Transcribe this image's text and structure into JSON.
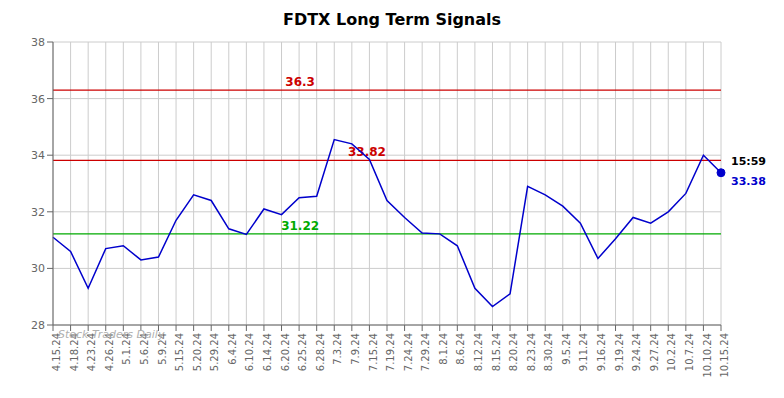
{
  "chart_data": {
    "type": "line",
    "title": "FDTX Long Term Signals",
    "categories": [
      "4.15.24",
      "4.18.24",
      "4.23.24",
      "4.26.24",
      "5.1.24",
      "5.6.24",
      "5.9.24",
      "5.15.24",
      "5.20.24",
      "5.29.24",
      "6.4.24",
      "6.10.24",
      "6.14.24",
      "6.20.24",
      "6.25.24",
      "6.28.24",
      "7.3.24",
      "7.9.24",
      "7.15.24",
      "7.19.24",
      "7.24.24",
      "7.29.24",
      "8.1.24",
      "8.6.24",
      "8.12.24",
      "8.15.24",
      "8.20.24",
      "8.23.24",
      "8.30.24",
      "9.5.24",
      "9.11.24",
      "9.16.24",
      "9.19.24",
      "9.24.24",
      "9.27.24",
      "10.2.24",
      "10.7.24",
      "10.10.24",
      "10.15.24"
    ],
    "values": [
      31.1,
      30.6,
      29.3,
      30.7,
      30.8,
      30.3,
      30.4,
      31.7,
      32.6,
      32.4,
      31.4,
      31.2,
      32.1,
      31.9,
      32.5,
      32.55,
      34.55,
      34.4,
      33.85,
      32.4,
      31.8,
      31.25,
      31.22,
      30.8,
      29.3,
      28.65,
      29.1,
      32.9,
      32.6,
      32.2,
      31.6,
      30.35,
      31.05,
      31.8,
      31.6,
      32.0,
      32.65,
      34.0,
      33.38
    ],
    "color": "#0000cc",
    "ylim": [
      28,
      38
    ],
    "yticks": [
      28,
      30,
      32,
      34,
      36,
      38
    ],
    "grid": true,
    "reference_lines": [
      {
        "value": 36.3,
        "label": "36.3",
        "color": "#cc0000"
      },
      {
        "value": 33.82,
        "label": "33.82",
        "color": "#cc0000"
      },
      {
        "value": 31.22,
        "label": "31.22",
        "color": "#00aa00"
      }
    ],
    "annotations": [
      {
        "text": "15:59",
        "color": "#000000"
      },
      {
        "text": "33.38",
        "color": "#0000cc"
      }
    ],
    "watermark": {
      "text": "Stock Traders Daily",
      "color": "#b0b0b0"
    }
  }
}
